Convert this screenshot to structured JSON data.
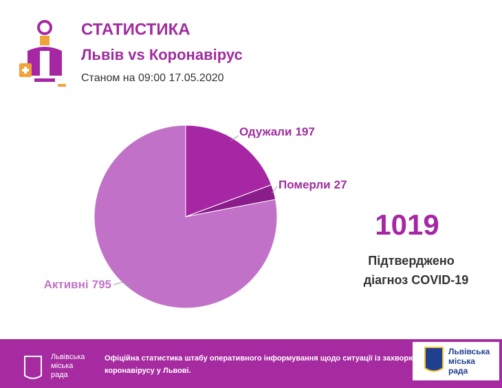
{
  "chart_data": {
    "type": "pie",
    "title": "СТАТИСТИКА",
    "subtitle": "Львів vs Коронавірус",
    "date": "Станом на 09:00 17.05.2020",
    "categories": [
      "Одужали",
      "Померли",
      "Активні"
    ],
    "values": [
      197,
      27,
      795
    ],
    "colors": [
      "#a626a4",
      "#8b1c8b",
      "#c172c8"
    ],
    "total": 1019,
    "total_caption": [
      "Підтверджено",
      "діагноз COVID-19"
    ]
  },
  "footer": {
    "logo_left": [
      "Львівська",
      "міська",
      "рада"
    ],
    "text": [
      "Офіційна статистика штабу оперативного інформування щодо ситуації із захворюванням на",
      "коронавірусу у Львові."
    ],
    "logo_right": [
      "Львівська",
      "міська",
      "рада"
    ]
  }
}
